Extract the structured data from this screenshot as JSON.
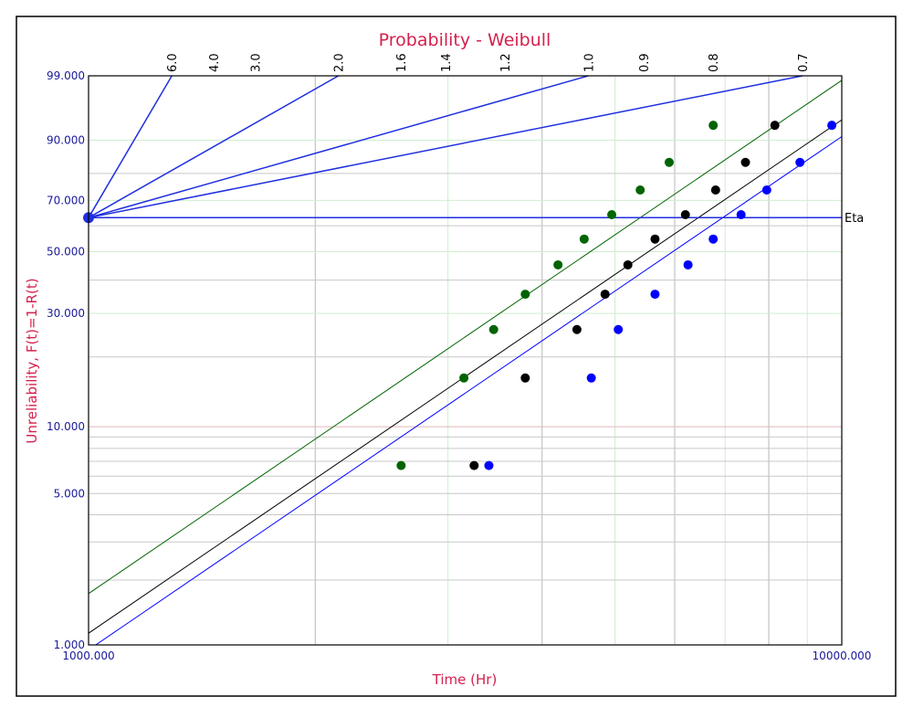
{
  "chart_data": {
    "type": "scatter",
    "title": "Probability - Weibull",
    "xlabel": "Time (Hr)",
    "ylabel": "Unreliability, F(t)=1-R(t)",
    "x_scale": "log",
    "y_scale": "weibull",
    "xlim": [
      1000,
      10000
    ],
    "ylim": [
      1,
      99
    ],
    "x_ticks": [
      {
        "value": 1000,
        "label": "1000.000"
      },
      {
        "value": 10000,
        "label": "10000.000"
      }
    ],
    "y_ticks": [
      {
        "value": 1,
        "label": "1.000"
      },
      {
        "value": 5,
        "label": "5.000"
      },
      {
        "value": 10,
        "label": "10.000"
      },
      {
        "value": 30,
        "label": "30.000"
      },
      {
        "value": 50,
        "label": "50.000"
      },
      {
        "value": 70,
        "label": "70.000"
      },
      {
        "value": 90,
        "label": "90.000"
      },
      {
        "value": 99,
        "label": "99.000"
      }
    ],
    "grid": true,
    "beta_scale": {
      "labels": [
        "6.0",
        "4.0",
        "3.0",
        "2.0",
        "1.6",
        "1.4",
        "1.2",
        "1.0",
        "0.9",
        "0.8",
        "0.7"
      ],
      "plotted_lines": [
        6.0,
        2.0,
        1.0,
        0.7
      ]
    },
    "eta_label": "Eta",
    "series": [
      {
        "color": "#006400",
        "x": [
          2600,
          3150,
          3450,
          3800,
          4200,
          4550,
          4950,
          5400,
          5900,
          6750
        ],
        "y": [
          6.7,
          16.3,
          25.9,
          35.5,
          45.2,
          54.8,
          64.4,
          74.0,
          83.7,
          93.3
        ],
        "fit": {
          "beta": 2.4,
          "eta": 5400
        }
      },
      {
        "color": "#000000",
        "x": [
          3250,
          3800,
          4450,
          4850,
          5200,
          5650,
          6200,
          6800,
          7450,
          8150
        ],
        "y": [
          6.7,
          16.3,
          25.9,
          35.5,
          45.2,
          54.8,
          64.4,
          74.0,
          83.7,
          93.3
        ],
        "fit": {
          "beta": 2.4,
          "eta": 6450
        }
      },
      {
        "color": "#0000ff",
        "x": [
          3400,
          4650,
          5050,
          5650,
          6250,
          6750,
          7350,
          7950,
          8800,
          9700
        ],
        "y": [
          6.7,
          16.3,
          25.9,
          35.5,
          45.2,
          54.8,
          64.4,
          74.0,
          83.7,
          93.3
        ],
        "fit": {
          "beta": 2.4,
          "eta": 6950
        }
      }
    ]
  }
}
